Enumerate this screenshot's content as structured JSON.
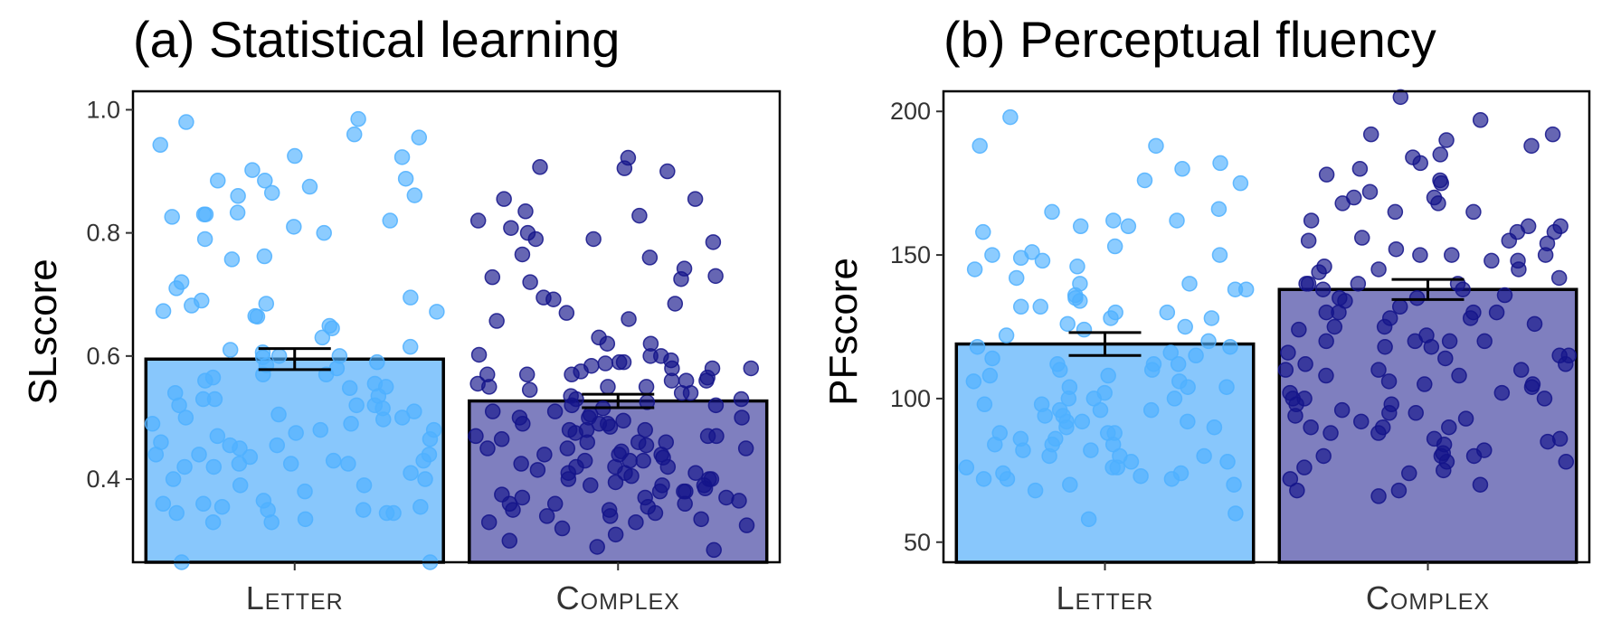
{
  "chart_data": [
    {
      "type": "bar",
      "title": "(a) Statistical learning",
      "ylabel": "SLscore",
      "categories": [
        "Letter",
        "Complex"
      ],
      "values": [
        0.595,
        0.527
      ],
      "error": [
        0.017,
        0.011
      ],
      "ylim": [
        0.265,
        1.03
      ],
      "yticks": [
        0.4,
        0.6,
        0.8,
        1.0
      ],
      "ytick_labels": [
        "0.4",
        "0.6",
        "0.8",
        "1.0"
      ],
      "colors": [
        "#88c7fc",
        "#7f7fbf"
      ],
      "point_colors": [
        "#4fb0ff",
        "#14148a"
      ],
      "points": [
        [
          0.888,
          0.861,
          0.826,
          0.762,
          0.695,
          0.682,
          0.664,
          0.925,
          0.649,
          0.885,
          0.98,
          0.955,
          0.885,
          0.83,
          0.81,
          0.757,
          0.72,
          0.985,
          0.86,
          0.833,
          0.943,
          0.923,
          0.83,
          0.82,
          0.865,
          0.79,
          0.875,
          0.902,
          0.96,
          0.8,
          0.71,
          0.69,
          0.685,
          0.673,
          0.672,
          0.665,
          0.645,
          0.63,
          0.615,
          0.61,
          0.606,
          0.6,
          0.598,
          0.59,
          0.585,
          0.57,
          0.565,
          0.56,
          0.548,
          0.54,
          0.53,
          0.52,
          0.515,
          0.51,
          0.5,
          0.497,
          0.49,
          0.48,
          0.475,
          0.465,
          0.455,
          0.45,
          0.44,
          0.436,
          0.43,
          0.425,
          0.42,
          0.41,
          0.4,
          0.39,
          0.38,
          0.365,
          0.36,
          0.355,
          0.35,
          0.345,
          0.335,
          0.33,
          0.4,
          0.39,
          0.345,
          0.33,
          0.265,
          0.265,
          0.6,
          0.58,
          0.57,
          0.55,
          0.53,
          0.52,
          0.5,
          0.48,
          0.46,
          0.44,
          0.425,
          0.555,
          0.535,
          0.52,
          0.505,
          0.49,
          0.47,
          0.455,
          0.44,
          0.425,
          0.36,
          0.355,
          0.35,
          0.345,
          0.42,
          0.43
        ],
        [
          0.808,
          0.785,
          0.742,
          0.728,
          0.695,
          0.855,
          0.855,
          0.907,
          0.905,
          0.9,
          0.79,
          0.79,
          0.8,
          0.76,
          0.72,
          0.725,
          0.73,
          0.692,
          0.685,
          0.67,
          0.657,
          0.66,
          0.62,
          0.602,
          0.6,
          0.593,
          0.59,
          0.588,
          0.584,
          0.58,
          0.575,
          0.57,
          0.565,
          0.56,
          0.555,
          0.55,
          0.545,
          0.54,
          0.535,
          0.53,
          0.525,
          0.52,
          0.515,
          0.51,
          0.505,
          0.5,
          0.495,
          0.49,
          0.485,
          0.48,
          0.475,
          0.47,
          0.465,
          0.46,
          0.455,
          0.45,
          0.445,
          0.44,
          0.435,
          0.43,
          0.425,
          0.42,
          0.415,
          0.41,
          0.405,
          0.4,
          0.395,
          0.39,
          0.385,
          0.38,
          0.375,
          0.37,
          0.365,
          0.36,
          0.355,
          0.35,
          0.345,
          0.34,
          0.335,
          0.33,
          0.325,
          0.32,
          0.31,
          0.3,
          0.29,
          0.285,
          0.835,
          0.828,
          0.82,
          0.922,
          0.765,
          0.63,
          0.62,
          0.6,
          0.59,
          0.58,
          0.57,
          0.56,
          0.55,
          0.54,
          0.53,
          0.52,
          0.51,
          0.5,
          0.49,
          0.48,
          0.47,
          0.46,
          0.45,
          0.44,
          0.43,
          0.42,
          0.41,
          0.4,
          0.39,
          0.38,
          0.37,
          0.36,
          0.35,
          0.34,
          0.33,
          0.45,
          0.46,
          0.47,
          0.48,
          0.49,
          0.5,
          0.42,
          0.43,
          0.44,
          0.55,
          0.56,
          0.57,
          0.58,
          0.38,
          0.39,
          0.4,
          0.41,
          0.36,
          0.37
        ],
        []
      ]
    },
    {
      "type": "bar",
      "title": "(b) Perceptual fluency",
      "ylabel": "PFscore",
      "categories": [
        "Letter",
        "Complex"
      ],
      "values": [
        119,
        138
      ],
      "error": [
        4,
        3.5
      ],
      "ylim": [
        43,
        207
      ],
      "yticks": [
        50,
        100,
        150,
        200
      ],
      "ytick_labels": [
        "50",
        "100",
        "150",
        "200"
      ],
      "colors": [
        "#88c7fc",
        "#7f7fbf"
      ],
      "point_colors": [
        "#4fb0ff",
        "#14148a"
      ],
      "points": [
        [
          198,
          180,
          176,
          166,
          162,
          160,
          158,
          153,
          151,
          150,
          149,
          145,
          140,
          138,
          136,
          134,
          132,
          130,
          128,
          126,
          124,
          122,
          120,
          118,
          116,
          114,
          112,
          110,
          108,
          106,
          104,
          102,
          100,
          98,
          96,
          94,
          92,
          90,
          88,
          86,
          84,
          82,
          80,
          78,
          76,
          74,
          72,
          70,
          68,
          60,
          58,
          188,
          188,
          182,
          175,
          165,
          162,
          160,
          148,
          146,
          140,
          138,
          132,
          130,
          128,
          125,
          118,
          112,
          110,
          106,
          104,
          100,
          98,
          96,
          94,
          92,
          90,
          88,
          86,
          84,
          82,
          80,
          78,
          76,
          74,
          73,
          72,
          70,
          115,
          112,
          108,
          104,
          100,
          96,
          92,
          88,
          84,
          80,
          76,
          72,
          150,
          142,
          135
        ],
        [
          205,
          197,
          192,
          190,
          188,
          185,
          182,
          180,
          178,
          175,
          172,
          170,
          168,
          165,
          162,
          160,
          158,
          156,
          154,
          152,
          150,
          148,
          146,
          144,
          142,
          140,
          138,
          136,
          134,
          132,
          130,
          128,
          126,
          124,
          122,
          120,
          118,
          116,
          114,
          112,
          110,
          108,
          106,
          104,
          102,
          100,
          98,
          96,
          94,
          92,
          90,
          88,
          86,
          84,
          82,
          80,
          78,
          76,
          74,
          72,
          70,
          68,
          66,
          160,
          155,
          150,
          145,
          140,
          135,
          130,
          125,
          120,
          115,
          110,
          105,
          100,
          95,
          90,
          85,
          80,
          75,
          192,
          184,
          176,
          168,
          158,
          148,
          138,
          128,
          118,
          108,
          98,
          88,
          78,
          68,
          150,
          140,
          130,
          120,
          110,
          100,
          90,
          80,
          135,
          125,
          115,
          105,
          95,
          170,
          165,
          155,
          145,
          140,
          130,
          120,
          112,
          102,
          93,
          86,
          81
        ]
      ]
    }
  ]
}
